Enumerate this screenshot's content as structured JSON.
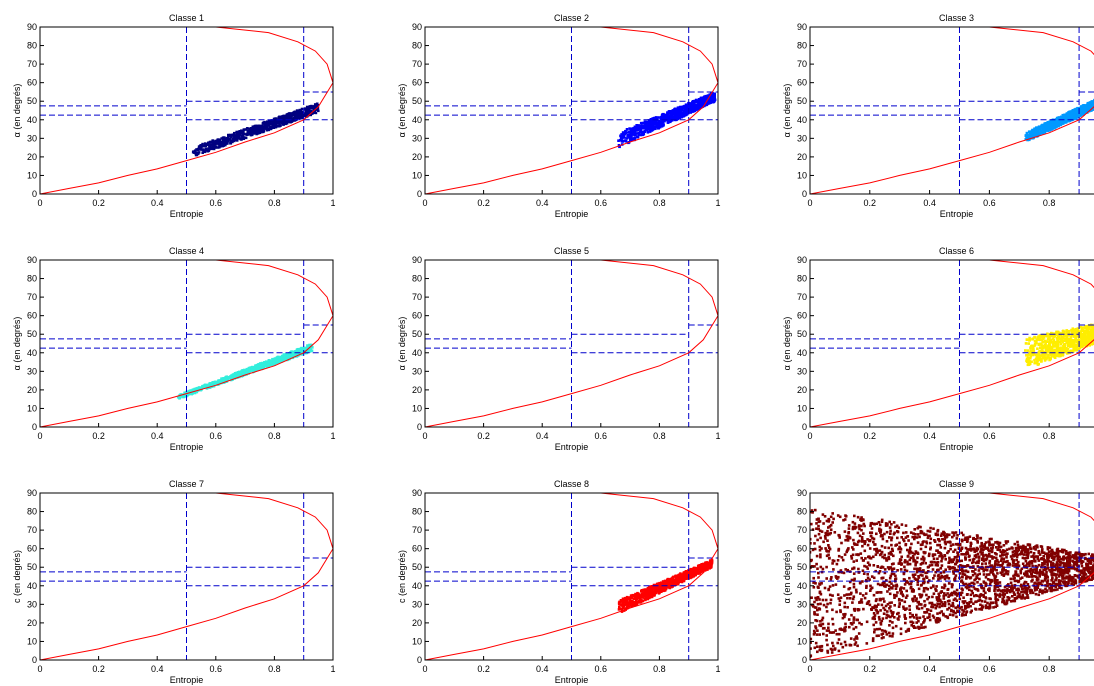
{
  "figure": {
    "background": "#ffffff",
    "axis_color": "#000000",
    "boundary_color": "#ff0000",
    "zone_line_color": "#0000cc"
  },
  "chart_data": [
    {
      "type": "scatter",
      "title": "Classe 1",
      "xlabel": "Entropie",
      "ylabel": "α (en degrés)",
      "xlim": [
        0,
        1
      ],
      "ylim": [
        0,
        90
      ],
      "xticks": [
        "0",
        "0.2",
        "0.4",
        "0.6",
        "0.8",
        "1"
      ],
      "yticks": [
        "0",
        "10",
        "20",
        "30",
        "40",
        "50",
        "60",
        "70",
        "80",
        "90"
      ],
      "color": "#000080",
      "cluster": {
        "entropy_range": [
          0.52,
          0.95
        ],
        "alpha_low": [
          20,
          44
        ],
        "alpha_high": [
          25,
          49
        ]
      }
    },
    {
      "type": "scatter",
      "title": "Classe 2",
      "xlabel": "Entropie",
      "ylabel": "α (en degrés)",
      "xlim": [
        0,
        1
      ],
      "ylim": [
        0,
        90
      ],
      "xticks": [
        "0",
        "0.2",
        "0.4",
        "0.6",
        "0.8",
        "1"
      ],
      "yticks": [
        "0",
        "10",
        "20",
        "30",
        "40",
        "50",
        "60",
        "70",
        "80",
        "90"
      ],
      "color": "#0000ff",
      "cluster": {
        "entropy_range": [
          0.66,
          0.99
        ],
        "alpha_low": [
          25,
          50
        ],
        "alpha_high": [
          33,
          55
        ]
      }
    },
    {
      "type": "scatter",
      "title": "Classe 3",
      "xlabel": "Entropie",
      "ylabel": "α (en degrés)",
      "xlim": [
        0,
        0.98
      ],
      "ylim": [
        0,
        90
      ],
      "xticks": [
        "0",
        "0.2",
        "0.4",
        "0.6",
        "0.8"
      ],
      "yticks": [
        "0",
        "10",
        "20",
        "30",
        "40",
        "50",
        "60",
        "70",
        "80",
        "90"
      ],
      "color": "#0099ff",
      "cluster": {
        "entropy_range": [
          0.72,
          0.97
        ],
        "alpha_low": [
          28,
          47
        ],
        "alpha_high": [
          33,
          52
        ]
      }
    },
    {
      "type": "scatter",
      "title": "Classe 4",
      "xlabel": "Entropie",
      "ylabel": "α (en degrés)",
      "xlim": [
        0,
        1
      ],
      "ylim": [
        0,
        90
      ],
      "xticks": [
        "0",
        "0.2",
        "0.4",
        "0.6",
        "0.8",
        "1"
      ],
      "yticks": [
        "0",
        "10",
        "20",
        "30",
        "40",
        "50",
        "60",
        "70",
        "80",
        "90"
      ],
      "color": "#33eedd",
      "cluster": {
        "entropy_range": [
          0.47,
          0.93
        ],
        "alpha_low": [
          15,
          41
        ],
        "alpha_high": [
          17,
          45
        ]
      }
    },
    {
      "type": "scatter",
      "title": "Classe 5",
      "xlabel": "Entropie",
      "ylabel": "α (en degrés)",
      "xlim": [
        0,
        1
      ],
      "ylim": [
        0,
        90
      ],
      "xticks": [
        "0",
        "0.2",
        "0.4",
        "0.6",
        "0.8",
        "1"
      ],
      "yticks": [
        "0",
        "10",
        "20",
        "30",
        "40",
        "50",
        "60",
        "70",
        "80",
        "90"
      ],
      "color": "#66ff66",
      "cluster": null
    },
    {
      "type": "scatter",
      "title": "Classe 6",
      "xlabel": "Entropie",
      "ylabel": "α (en degrés)",
      "xlim": [
        0,
        0.98
      ],
      "ylim": [
        0,
        90
      ],
      "xticks": [
        "0",
        "0.2",
        "0.4",
        "0.6",
        "0.8"
      ],
      "yticks": [
        "0",
        "10",
        "20",
        "30",
        "40",
        "50",
        "60",
        "70",
        "80",
        "90"
      ],
      "color": "#ffee00",
      "cluster": {
        "entropy_range": [
          0.72,
          0.97
        ],
        "alpha_low": [
          31,
          46
        ],
        "alpha_high": [
          48,
          56
        ]
      }
    },
    {
      "type": "scatter",
      "title": "Classe 7",
      "xlabel": "Entropie",
      "ylabel": "c (en degrés)",
      "xlim": [
        0,
        1
      ],
      "ylim": [
        0,
        90
      ],
      "xticks": [
        "0",
        "0.2",
        "0.4",
        "0.6",
        "0.8",
        "1"
      ],
      "yticks": [
        "0",
        "10",
        "20",
        "30",
        "40",
        "50",
        "60",
        "70",
        "80",
        "90"
      ],
      "color": "#ff8800",
      "cluster": null
    },
    {
      "type": "scatter",
      "title": "Classe 8",
      "xlabel": "Entropie",
      "ylabel": "c (en degrés)",
      "xlim": [
        0,
        1
      ],
      "ylim": [
        0,
        90
      ],
      "xticks": [
        "0",
        "0.2",
        "0.4",
        "0.6",
        "0.8",
        "1"
      ],
      "yticks": [
        "0",
        "10",
        "20",
        "30",
        "40",
        "50",
        "60",
        "70",
        "80",
        "90"
      ],
      "color": "#ff0000",
      "cluster": {
        "entropy_range": [
          0.66,
          0.98
        ],
        "alpha_low": [
          25,
          50
        ],
        "alpha_high": [
          32,
          54
        ]
      }
    },
    {
      "type": "scatter",
      "title": "Classe 9",
      "xlabel": "Entropie",
      "ylabel": "α (en degrés)",
      "xlim": [
        0,
        0.98
      ],
      "ylim": [
        0,
        90
      ],
      "xticks": [
        "0",
        "0.2",
        "0.4",
        "0.6",
        "0.8"
      ],
      "yticks": [
        "0",
        "10",
        "20",
        "30",
        "40",
        "50",
        "60",
        "70",
        "80",
        "90"
      ],
      "color": "#800000",
      "cluster": {
        "entropy_range": [
          0.0,
          0.98
        ],
        "alpha_low": [
          0,
          45
        ],
        "alpha_high": [
          82,
          56
        ]
      }
    }
  ]
}
